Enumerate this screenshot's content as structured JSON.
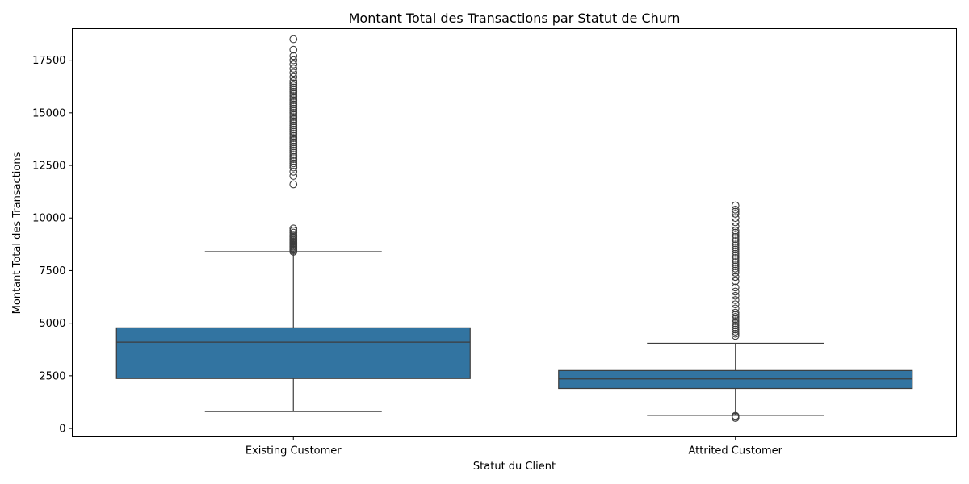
{
  "chart_data": {
    "type": "box",
    "title": "Montant Total des Transactions par Statut de Churn",
    "xlabel": "Statut du Client",
    "ylabel": "Montant Total des Transactions",
    "ylim": [
      -400,
      19000
    ],
    "yticks": [
      0,
      2500,
      5000,
      7500,
      10000,
      12500,
      15000,
      17500
    ],
    "ytick_labels": [
      "0",
      "2500",
      "5000",
      "7500",
      "10000",
      "12500",
      "15000",
      "17500"
    ],
    "categories": [
      "Existing Customer",
      "Attrited Customer"
    ],
    "grid": false,
    "legend": "none",
    "box_color": "#3274a1",
    "line_color": "#3d3d3d",
    "boxes": [
      {
        "category": "Existing Customer",
        "whisker_low": 800,
        "q1": 2370,
        "median": 4100,
        "q3": 4780,
        "whisker_high": 8400,
        "outliers": [
          8400,
          8450,
          8500,
          8550,
          8600,
          8650,
          8700,
          8750,
          8800,
          8850,
          8900,
          8950,
          9000,
          9050,
          9100,
          9150,
          9200,
          9300,
          9400,
          9500,
          11600,
          12000,
          12200,
          12400,
          12500,
          12600,
          12700,
          12800,
          12900,
          13000,
          13100,
          13200,
          13300,
          13400,
          13500,
          13600,
          13700,
          13800,
          13900,
          14000,
          14100,
          14200,
          14300,
          14400,
          14500,
          14600,
          14700,
          14800,
          14900,
          15000,
          15100,
          15200,
          15300,
          15400,
          15500,
          15600,
          15700,
          15800,
          15900,
          16000,
          16100,
          16200,
          16300,
          16400,
          16500,
          16700,
          16900,
          17100,
          17300,
          17500,
          17700,
          18000,
          18500
        ]
      },
      {
        "category": "Attrited Customer",
        "whisker_low": 620,
        "q1": 1900,
        "median": 2350,
        "q3": 2750,
        "whisker_high": 4050,
        "outliers": [
          500,
          560,
          600,
          4400,
          4500,
          4600,
          4700,
          4800,
          4900,
          5000,
          5100,
          5200,
          5300,
          5400,
          5500,
          5700,
          5900,
          6100,
          6300,
          6500,
          6700,
          7000,
          7200,
          7400,
          7500,
          7600,
          7700,
          7800,
          7900,
          8000,
          8100,
          8200,
          8300,
          8400,
          8500,
          8600,
          8700,
          8800,
          8900,
          9000,
          9100,
          9200,
          9300,
          9400,
          9600,
          9800,
          10000,
          10200,
          10300,
          10400,
          10600
        ]
      }
    ]
  }
}
